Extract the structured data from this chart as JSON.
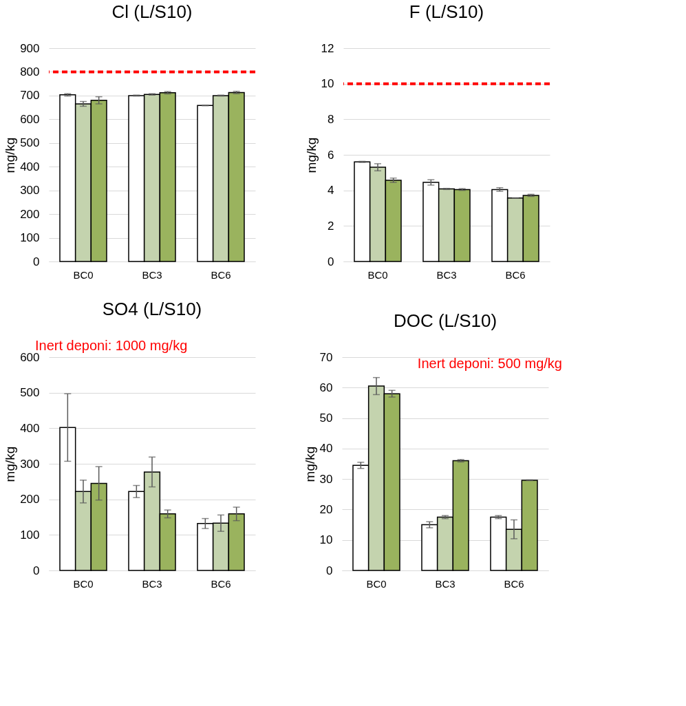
{
  "chart_data": [
    {
      "type": "bar",
      "title": "Cl (L/S10)",
      "ylabel": "mg/kg",
      "categories": [
        "BC0",
        "BC3",
        "BC6"
      ],
      "ylim": [
        0,
        900
      ],
      "yticks": [
        0,
        100,
        200,
        300,
        400,
        500,
        600,
        700,
        800,
        900
      ],
      "grid": "y",
      "series": [
        {
          "color": "#ffffff",
          "values": [
            703,
            700,
            658
          ],
          "errors": [
            5,
            2,
            1
          ]
        },
        {
          "color": "#c4d3ae",
          "values": [
            665,
            705,
            700
          ],
          "errors": [
            10,
            3,
            2
          ]
        },
        {
          "color": "#9ab35e",
          "values": [
            680,
            712,
            713
          ],
          "errors": [
            15,
            5,
            5
          ]
        }
      ],
      "ref_lines": [
        {
          "axis": "y",
          "value": 800,
          "color": "#ff0000",
          "line_style": "dashed"
        }
      ]
    },
    {
      "type": "bar",
      "title": "F (L/S10)",
      "ylabel": "mg/kg",
      "categories": [
        "BC0",
        "BC3",
        "BC6"
      ],
      "ylim": [
        0,
        12
      ],
      "yticks": [
        0,
        2,
        4,
        6,
        8,
        10,
        12
      ],
      "grid": "y",
      "series": [
        {
          "color": "#ffffff",
          "values": [
            5.6,
            4.45,
            4.05
          ],
          "errors": [
            0.03,
            0.15,
            0.1
          ]
        },
        {
          "color": "#c4d3ae",
          "values": [
            5.3,
            4.08,
            3.57
          ],
          "errors": [
            0.2,
            0.03,
            0.01
          ]
        },
        {
          "color": "#9ab35e",
          "values": [
            4.57,
            4.05,
            3.72
          ],
          "errors": [
            0.12,
            0.05,
            0.06
          ]
        }
      ],
      "ref_lines": [
        {
          "axis": "y",
          "value": 10,
          "color": "#ff0000",
          "line_style": "dashed"
        }
      ]
    },
    {
      "type": "bar",
      "title": "SO4 (L/S10)",
      "ylabel": "mg/kg",
      "categories": [
        "BC0",
        "BC3",
        "BC6"
      ],
      "ylim": [
        0,
        600
      ],
      "yticks": [
        0,
        100,
        200,
        300,
        400,
        500,
        600
      ],
      "grid": "y",
      "series": [
        {
          "color": "#ffffff",
          "values": [
            402,
            222,
            132
          ],
          "errors": [
            95,
            17,
            14
          ]
        },
        {
          "color": "#c4d3ae",
          "values": [
            222,
            277,
            133
          ],
          "errors": [
            32,
            42,
            23
          ]
        },
        {
          "color": "#9ab35e",
          "values": [
            245,
            159,
            159
          ],
          "errors": [
            47,
            11,
            19
          ]
        }
      ],
      "annotations": [
        "Inert deponi: 1000 mg/kg"
      ]
    },
    {
      "type": "bar",
      "title": "DOC (L/S10)",
      "ylabel": "mg/kg",
      "categories": [
        "BC0",
        "BC3",
        "BC6"
      ],
      "ylim": [
        0,
        70
      ],
      "yticks": [
        0,
        10,
        20,
        30,
        40,
        50,
        60,
        70
      ],
      "grid": "y",
      "series": [
        {
          "color": "#ffffff",
          "values": [
            34.5,
            15,
            17.5
          ],
          "errors": [
            1.0,
            1.0,
            0.5
          ]
        },
        {
          "color": "#c4d3ae",
          "values": [
            60.5,
            17.5,
            13.5
          ],
          "errors": [
            2.8,
            0.5,
            3.1
          ]
        },
        {
          "color": "#9ab35e",
          "values": [
            58,
            36,
            29.6
          ],
          "errors": [
            1.1,
            0.4,
            0.1
          ]
        }
      ],
      "annotations": [
        "Inert deponi: 500 mg/kg"
      ]
    }
  ]
}
